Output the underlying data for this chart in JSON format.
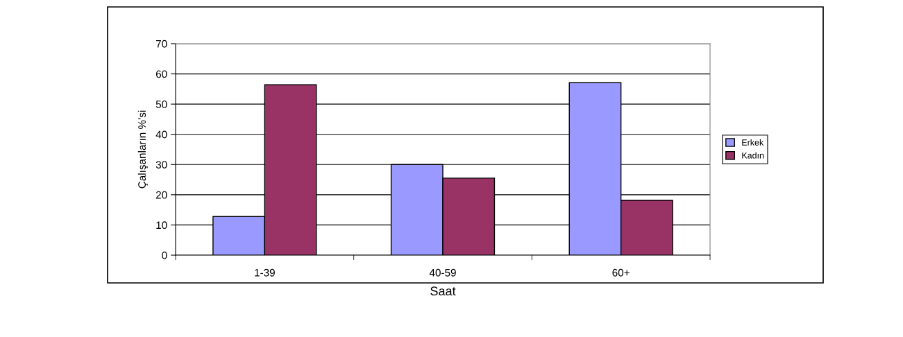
{
  "chart_data": {
    "type": "bar",
    "xlabel": "Saat",
    "ylabel": "Çalışanların %’si",
    "categories": [
      "1-39",
      "40-59",
      "60+"
    ],
    "series": [
      {
        "name": "Erkek",
        "color": "#9999ff",
        "values": [
          12.8,
          30,
          57.1
        ]
      },
      {
        "name": "Kadın",
        "color": "#993366",
        "values": [
          56.4,
          25.5,
          18.2
        ]
      }
    ],
    "ylim": [
      0,
      70
    ],
    "yticks": [
      0,
      10,
      20,
      30,
      40,
      50,
      60,
      70
    ],
    "grid": "y",
    "legend": "right"
  }
}
